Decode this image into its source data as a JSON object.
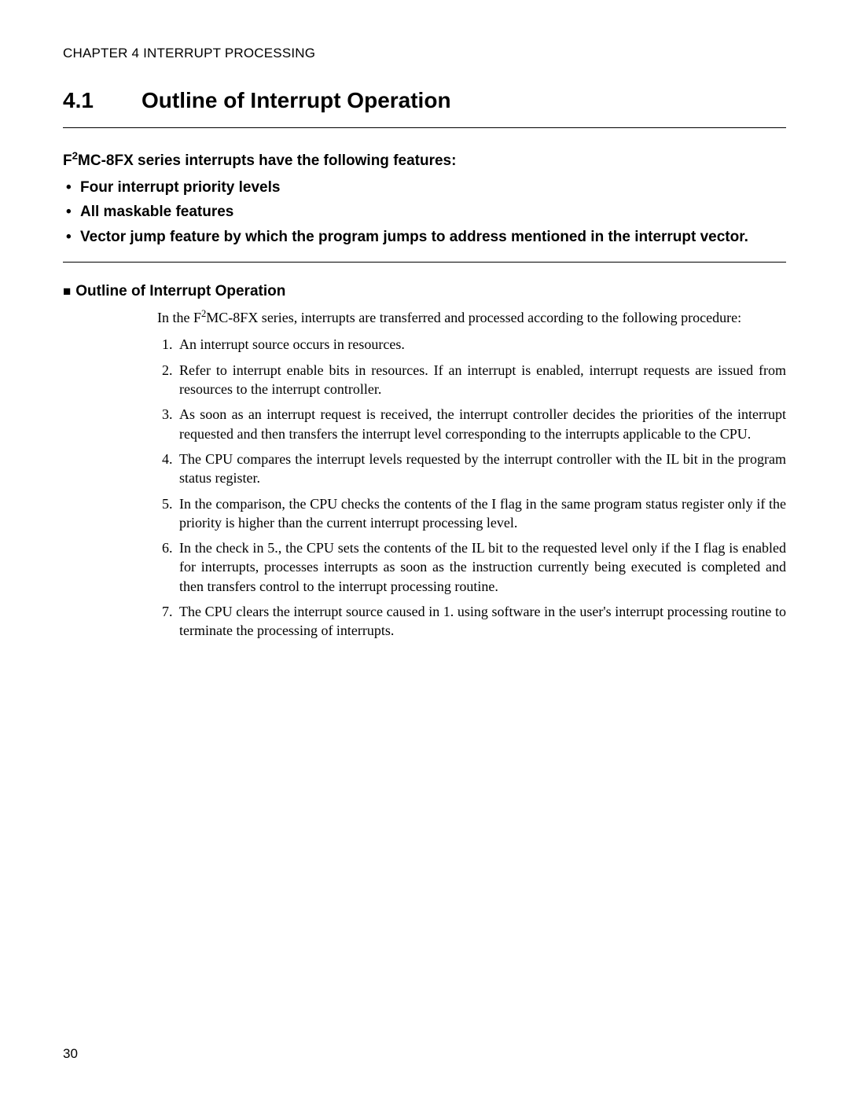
{
  "chapter_header": "CHAPTER 4  INTERRUPT PROCESSING",
  "section": {
    "number": "4.1",
    "title": "Outline of Interrupt Operation"
  },
  "intro": {
    "lead_prefix": "F",
    "lead_super": "2",
    "lead_rest": "MC-8FX series interrupts have the following features:",
    "bullets": [
      "Four interrupt priority levels",
      "All maskable features",
      "Vector jump feature by which the program jumps to address mentioned in the interrupt vector."
    ]
  },
  "subheading": "Outline of Interrupt Operation",
  "body_para_prefix": "In the F",
  "body_para_super": "2",
  "body_para_rest": "MC-8FX series, interrupts are transferred and processed according to the following procedure:",
  "steps": [
    "An interrupt source occurs in resources.",
    "Refer to interrupt enable bits in resources. If an interrupt is enabled, interrupt requests are issued from resources to the interrupt controller.",
    "As soon as an interrupt request is received, the interrupt controller decides the priorities of the interrupt requested and then transfers the interrupt level corresponding to the interrupts applicable to the CPU.",
    "The CPU compares the interrupt levels requested by the interrupt controller with the IL bit in the program status register.",
    "In the comparison, the CPU checks the contents of the I flag in the same program status register only if the priority is higher than the current interrupt processing level.",
    "In the check in 5., the CPU sets the contents of the IL bit to the requested level only if the I flag is enabled for interrupts, processes interrupts as soon as the instruction currently being executed is completed and then transfers control to the interrupt processing routine.",
    "The CPU clears the interrupt source caused in 1. using software in the user's interrupt processing routine to terminate the processing of interrupts."
  ],
  "page_number": "30"
}
